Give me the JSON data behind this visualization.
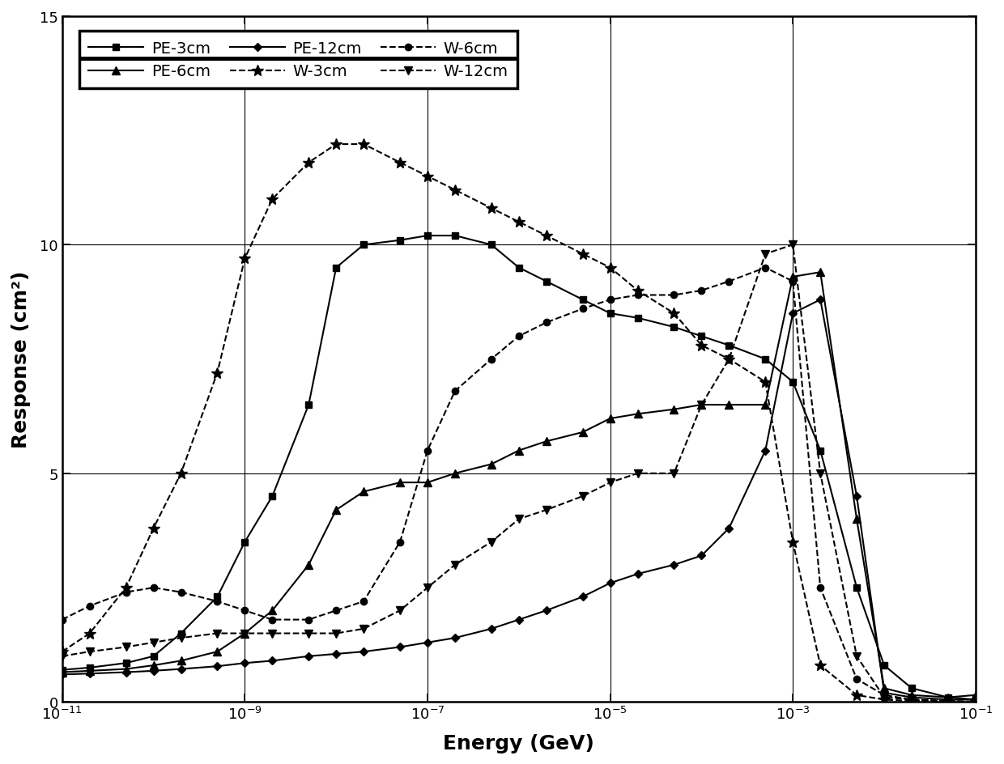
{
  "title": "",
  "xlabel": "Energy (GeV)",
  "ylabel": "Response (cm²)",
  "xlim": [
    1e-11,
    0.1
  ],
  "ylim": [
    0,
    15
  ],
  "yticks": [
    0,
    5,
    10,
    15
  ],
  "PE_3cm_x": [
    1e-11,
    2e-11,
    5e-11,
    1e-10,
    2e-10,
    5e-10,
    1e-09,
    2e-09,
    5e-09,
    1e-08,
    2e-08,
    5e-08,
    1e-07,
    2e-07,
    5e-07,
    1e-06,
    2e-06,
    5e-06,
    1e-05,
    2e-05,
    5e-05,
    0.0001,
    0.0002,
    0.0005,
    0.001,
    0.002,
    0.005,
    0.01,
    0.02,
    0.05,
    0.1
  ],
  "PE_3cm_y": [
    0.7,
    0.75,
    0.85,
    1.0,
    1.5,
    2.3,
    3.5,
    4.5,
    6.5,
    9.5,
    10.0,
    10.1,
    10.2,
    10.2,
    10.0,
    9.5,
    9.2,
    8.8,
    8.5,
    8.4,
    8.2,
    8.0,
    7.8,
    7.5,
    7.0,
    5.5,
    2.5,
    0.8,
    0.3,
    0.1,
    0.05
  ],
  "PE_6cm_x": [
    1e-11,
    2e-11,
    5e-11,
    1e-10,
    2e-10,
    5e-10,
    1e-09,
    2e-09,
    5e-09,
    1e-08,
    2e-08,
    5e-08,
    1e-07,
    2e-07,
    5e-07,
    1e-06,
    2e-06,
    5e-06,
    1e-05,
    2e-05,
    5e-05,
    0.0001,
    0.0002,
    0.0005,
    0.001,
    0.002,
    0.005,
    0.01,
    0.02,
    0.05,
    0.1
  ],
  "PE_6cm_y": [
    0.65,
    0.68,
    0.72,
    0.8,
    0.9,
    1.1,
    1.5,
    2.0,
    3.0,
    4.2,
    4.6,
    4.8,
    4.8,
    5.0,
    5.2,
    5.5,
    5.7,
    5.9,
    6.2,
    6.3,
    6.4,
    6.5,
    6.5,
    6.5,
    9.3,
    9.4,
    4.0,
    0.3,
    0.15,
    0.1,
    0.15
  ],
  "PE_12cm_x": [
    1e-11,
    2e-11,
    5e-11,
    1e-10,
    2e-10,
    5e-10,
    1e-09,
    2e-09,
    5e-09,
    1e-08,
    2e-08,
    5e-08,
    1e-07,
    2e-07,
    5e-07,
    1e-06,
    2e-06,
    5e-06,
    1e-05,
    2e-05,
    5e-05,
    0.0001,
    0.0002,
    0.0005,
    0.001,
    0.002,
    0.005,
    0.01,
    0.02,
    0.05,
    0.1
  ],
  "PE_12cm_y": [
    0.6,
    0.62,
    0.65,
    0.68,
    0.72,
    0.78,
    0.85,
    0.9,
    1.0,
    1.05,
    1.1,
    1.2,
    1.3,
    1.4,
    1.6,
    1.8,
    2.0,
    2.3,
    2.6,
    2.8,
    3.0,
    3.2,
    3.8,
    5.5,
    8.5,
    8.8,
    4.5,
    0.2,
    0.1,
    0.05,
    0.05
  ],
  "W_3cm_x": [
    1e-11,
    2e-11,
    5e-11,
    1e-10,
    2e-10,
    5e-10,
    1e-09,
    2e-09,
    5e-09,
    1e-08,
    2e-08,
    5e-08,
    1e-07,
    2e-07,
    5e-07,
    1e-06,
    2e-06,
    5e-06,
    1e-05,
    2e-05,
    5e-05,
    0.0001,
    0.0002,
    0.0005,
    0.001,
    0.002,
    0.005,
    0.01,
    0.02,
    0.05,
    0.1
  ],
  "W_3cm_y": [
    1.1,
    1.5,
    2.5,
    3.8,
    5.0,
    7.2,
    9.7,
    11.0,
    11.8,
    12.2,
    12.2,
    11.8,
    11.5,
    11.2,
    10.8,
    10.5,
    10.2,
    9.8,
    9.5,
    9.0,
    8.5,
    7.8,
    7.5,
    7.0,
    3.5,
    0.8,
    0.15,
    0.05,
    0.02,
    0.01,
    0.0
  ],
  "W_6cm_x": [
    1e-11,
    2e-11,
    5e-11,
    1e-10,
    2e-10,
    5e-10,
    1e-09,
    2e-09,
    5e-09,
    1e-08,
    2e-08,
    5e-08,
    1e-07,
    2e-07,
    5e-07,
    1e-06,
    2e-06,
    5e-06,
    1e-05,
    2e-05,
    5e-05,
    0.0001,
    0.0002,
    0.0005,
    0.001,
    0.002,
    0.005,
    0.01,
    0.02,
    0.05,
    0.1
  ],
  "W_6cm_y": [
    1.8,
    2.1,
    2.4,
    2.5,
    2.4,
    2.2,
    2.0,
    1.8,
    1.8,
    2.0,
    2.2,
    3.5,
    5.5,
    6.8,
    7.5,
    8.0,
    8.3,
    8.6,
    8.8,
    8.9,
    8.9,
    9.0,
    9.2,
    9.5,
    9.2,
    2.5,
    0.5,
    0.15,
    0.05,
    0.02,
    0.0
  ],
  "W_12cm_x": [
    1e-11,
    2e-11,
    5e-11,
    1e-10,
    2e-10,
    5e-10,
    1e-09,
    2e-09,
    5e-09,
    1e-08,
    2e-08,
    5e-08,
    1e-07,
    2e-07,
    5e-07,
    1e-06,
    2e-06,
    5e-06,
    1e-05,
    2e-05,
    5e-05,
    0.0001,
    0.0002,
    0.0005,
    0.001,
    0.002,
    0.005,
    0.01,
    0.02,
    0.05,
    0.1
  ],
  "W_12cm_y": [
    1.0,
    1.1,
    1.2,
    1.3,
    1.4,
    1.5,
    1.5,
    1.5,
    1.5,
    1.5,
    1.6,
    2.0,
    2.5,
    3.0,
    3.5,
    4.0,
    4.2,
    4.5,
    4.8,
    5.0,
    5.0,
    6.5,
    7.5,
    9.8,
    10.0,
    5.0,
    1.0,
    0.1,
    0.05,
    0.02,
    0.0
  ],
  "line_color": "#000000",
  "bg_color": "#ffffff"
}
